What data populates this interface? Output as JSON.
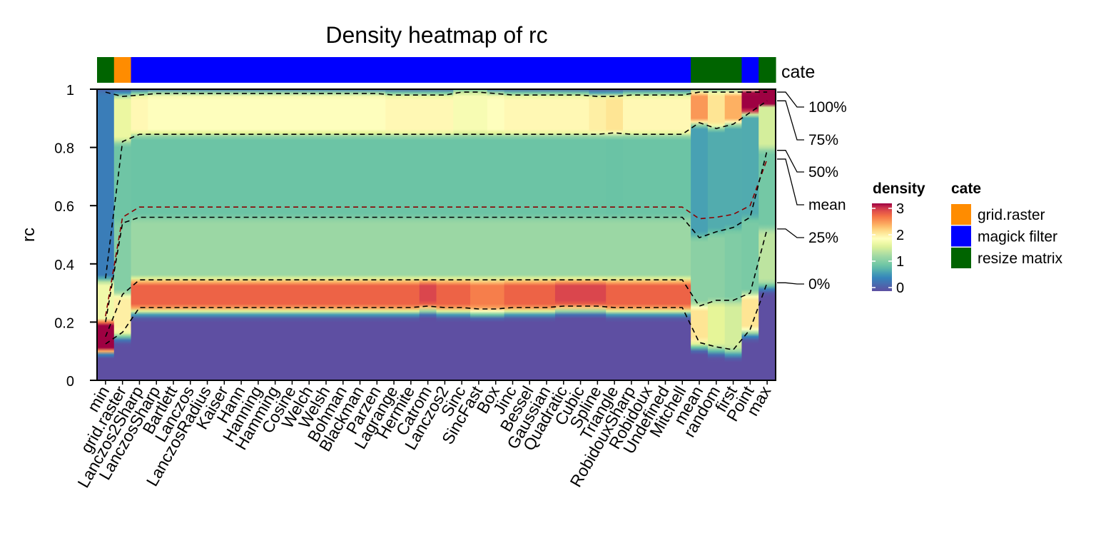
{
  "chart_data": {
    "type": "heatmap",
    "title": "Density heatmap of rc",
    "ylabel": "rc",
    "ylim": [
      0,
      1
    ],
    "y_ticks": [
      "0",
      "0.2",
      "0.4",
      "0.6",
      "0.8",
      "1"
    ],
    "categories": [
      "min",
      "grid.raster",
      "Lanczos2Sharp",
      "LanczosSharp",
      "Bartlett",
      "Lanczos",
      "LanczosRadius",
      "Kaiser",
      "Hann",
      "Hanning",
      "Hamming",
      "Cosine",
      "Welch",
      "Welsh",
      "Bohman",
      "Blackman",
      "Parzen",
      "Lagrange",
      "Hermite",
      "Catrom",
      "Lanczos2",
      "Sinc",
      "SincFast",
      "Box",
      "Jinc",
      "Bessel",
      "Gaussian",
      "Quadratic",
      "Cubic",
      "Spline",
      "Triangle",
      "RobidouxSharp",
      "Robidoux",
      "Undefined",
      "Mitchell",
      "mean",
      "random",
      "first",
      "Point",
      "max"
    ],
    "annotation": {
      "label": "cate",
      "values": [
        "resize matrix",
        "grid.raster",
        "magick filter",
        "magick filter",
        "magick filter",
        "magick filter",
        "magick filter",
        "magick filter",
        "magick filter",
        "magick filter",
        "magick filter",
        "magick filter",
        "magick filter",
        "magick filter",
        "magick filter",
        "magick filter",
        "magick filter",
        "magick filter",
        "magick filter",
        "magick filter",
        "magick filter",
        "magick filter",
        "magick filter",
        "magick filter",
        "magick filter",
        "magick filter",
        "magick filter",
        "magick filter",
        "magick filter",
        "magick filter",
        "magick filter",
        "magick filter",
        "magick filter",
        "magick filter",
        "magick filter",
        "resize matrix",
        "resize matrix",
        "resize matrix",
        "magick filter",
        "resize matrix"
      ],
      "colors": {
        "grid.raster": "#FF8C00",
        "magick filter": "#0000FF",
        "resize matrix": "#006400"
      }
    },
    "quantile_labels": [
      "100%",
      "75%",
      "50%",
      "mean",
      "25%",
      "0%"
    ],
    "quantiles": {
      "q100": [
        0.99,
        0.975,
        0.98,
        0.985,
        0.985,
        0.985,
        0.985,
        0.985,
        0.985,
        0.985,
        0.985,
        0.985,
        0.985,
        0.985,
        0.985,
        0.985,
        0.985,
        0.98,
        0.98,
        0.98,
        0.98,
        0.99,
        0.99,
        0.985,
        0.98,
        0.98,
        0.98,
        0.98,
        0.98,
        0.975,
        0.975,
        0.98,
        0.98,
        0.98,
        0.98,
        0.99,
        0.99,
        0.99,
        0.99,
        0.99
      ],
      "q75": [
        0.35,
        0.82,
        0.845,
        0.845,
        0.845,
        0.845,
        0.845,
        0.845,
        0.845,
        0.845,
        0.845,
        0.845,
        0.845,
        0.845,
        0.845,
        0.845,
        0.845,
        0.845,
        0.845,
        0.845,
        0.845,
        0.845,
        0.845,
        0.845,
        0.845,
        0.845,
        0.845,
        0.845,
        0.845,
        0.845,
        0.85,
        0.845,
        0.845,
        0.845,
        0.845,
        0.885,
        0.865,
        0.88,
        0.92,
        0.96
      ],
      "mean": [
        0.22,
        0.56,
        0.595,
        0.595,
        0.595,
        0.595,
        0.595,
        0.595,
        0.595,
        0.595,
        0.595,
        0.595,
        0.595,
        0.595,
        0.595,
        0.595,
        0.595,
        0.595,
        0.595,
        0.595,
        0.595,
        0.595,
        0.595,
        0.595,
        0.595,
        0.595,
        0.595,
        0.595,
        0.595,
        0.595,
        0.595,
        0.595,
        0.595,
        0.595,
        0.595,
        0.555,
        0.56,
        0.57,
        0.6,
        0.76
      ],
      "q50": [
        0.2,
        0.54,
        0.56,
        0.56,
        0.56,
        0.56,
        0.56,
        0.56,
        0.56,
        0.56,
        0.56,
        0.56,
        0.56,
        0.56,
        0.56,
        0.56,
        0.56,
        0.56,
        0.56,
        0.56,
        0.56,
        0.56,
        0.56,
        0.56,
        0.56,
        0.56,
        0.56,
        0.56,
        0.56,
        0.56,
        0.56,
        0.56,
        0.56,
        0.56,
        0.56,
        0.49,
        0.51,
        0.525,
        0.56,
        0.79
      ],
      "q25": [
        0.15,
        0.295,
        0.345,
        0.345,
        0.345,
        0.345,
        0.345,
        0.345,
        0.345,
        0.345,
        0.345,
        0.345,
        0.345,
        0.345,
        0.345,
        0.345,
        0.345,
        0.345,
        0.345,
        0.345,
        0.345,
        0.345,
        0.345,
        0.345,
        0.345,
        0.345,
        0.345,
        0.345,
        0.345,
        0.345,
        0.345,
        0.345,
        0.345,
        0.345,
        0.345,
        0.255,
        0.275,
        0.275,
        0.3,
        0.52
      ],
      "q0": [
        0.125,
        0.165,
        0.25,
        0.25,
        0.25,
        0.25,
        0.25,
        0.25,
        0.25,
        0.25,
        0.25,
        0.25,
        0.25,
        0.25,
        0.25,
        0.25,
        0.25,
        0.25,
        0.25,
        0.255,
        0.25,
        0.25,
        0.245,
        0.245,
        0.25,
        0.25,
        0.25,
        0.255,
        0.255,
        0.255,
        0.25,
        0.25,
        0.25,
        0.25,
        0.25,
        0.13,
        0.115,
        0.105,
        0.175,
        0.335
      ]
    },
    "legend_density": {
      "title": "density",
      "ticks": [
        "0",
        "1",
        "2",
        "3"
      ],
      "range": [
        0,
        3
      ]
    },
    "legend_cate": {
      "title": "cate",
      "items": [
        "grid.raster",
        "magick filter",
        "resize matrix"
      ]
    },
    "grid": false,
    "legend_placement": "right"
  }
}
